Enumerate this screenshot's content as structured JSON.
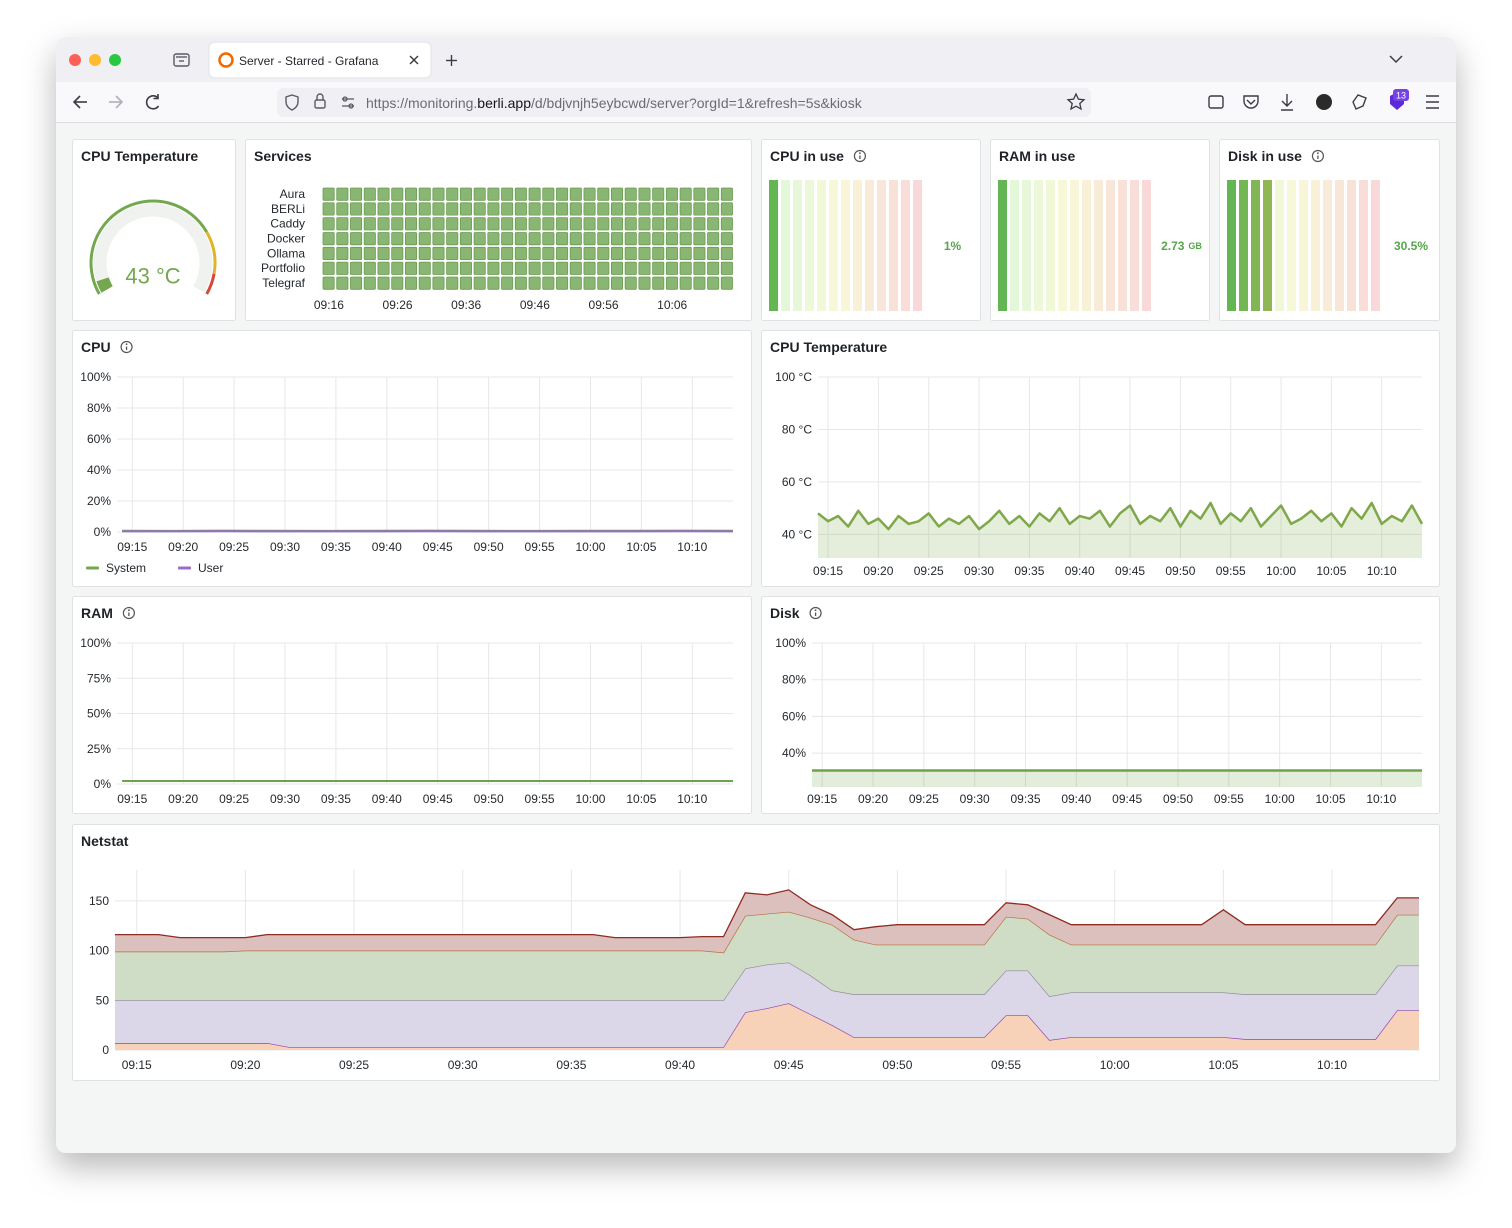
{
  "browser": {
    "tab_title": "Server - Starred - Grafana",
    "url": [
      "https://monitoring.",
      "berli.app",
      "/d/bdjvnjh5eybcwd/server?orgId=1&refresh=5s&kiosk"
    ],
    "extension_badge": "13"
  },
  "panels": [
    {
      "type": "gauge",
      "title": "CPU Temperature",
      "value": 43,
      "value_label": "43 °C",
      "min": 40,
      "max": 100,
      "base_color": "#73a84f",
      "thresholds": [
        {
          "value": 85,
          "color": "#e0b428"
        },
        {
          "value": 95,
          "color": "#d44a3a"
        }
      ]
    },
    {
      "type": "state_timeline",
      "title": "Services",
      "rows": [
        "Aura",
        "BERLi",
        "Caddy",
        "Docker",
        "Ollama",
        "Portfolio",
        "Telegraf"
      ],
      "color": "#8ab673",
      "values": [
        [
          1,
          1,
          1,
          1,
          1,
          1,
          1,
          1,
          1,
          1,
          1,
          1,
          1,
          1,
          1,
          1,
          1,
          1,
          1,
          1,
          1,
          1,
          1,
          1,
          1,
          1,
          1,
          1,
          1,
          1
        ],
        [
          1,
          1,
          1,
          1,
          1,
          1,
          1,
          1,
          1,
          1,
          1,
          1,
          1,
          1,
          1,
          1,
          1,
          1,
          1,
          1,
          1,
          1,
          1,
          1,
          1,
          1,
          1,
          1,
          1,
          1
        ],
        [
          1,
          1,
          1,
          1,
          1,
          1,
          1,
          1,
          1,
          1,
          1,
          1,
          1,
          1,
          1,
          1,
          1,
          1,
          1,
          1,
          1,
          1,
          1,
          1,
          1,
          1,
          1,
          1,
          1,
          1
        ],
        [
          1,
          1,
          1,
          1,
          1,
          1,
          1,
          1,
          1,
          1,
          1,
          1,
          1,
          1,
          1,
          1,
          1,
          1,
          1,
          1,
          1,
          1,
          1,
          1,
          1,
          1,
          1,
          1,
          1,
          1
        ],
        [
          1,
          1,
          1,
          1,
          1,
          1,
          1,
          1,
          1,
          1,
          1,
          1,
          1,
          1,
          1,
          1,
          1,
          1,
          1,
          1,
          1,
          1,
          1,
          1,
          1,
          1,
          1,
          1,
          1,
          1
        ],
        [
          1,
          1,
          1,
          1,
          1,
          1,
          1,
          1,
          1,
          1,
          1,
          1,
          1,
          1,
          1,
          1,
          1,
          1,
          1,
          1,
          1,
          1,
          1,
          1,
          1,
          1,
          1,
          1,
          1,
          1
        ],
        [
          1,
          1,
          1,
          1,
          1,
          1,
          1,
          1,
          1,
          1,
          1,
          1,
          1,
          1,
          1,
          1,
          1,
          1,
          1,
          1,
          1,
          1,
          1,
          1,
          1,
          1,
          1,
          1,
          1,
          1
        ]
      ],
      "xlim": [
        "09:15",
        "10:15"
      ],
      "xticks": [
        "09:16",
        "09:26",
        "09:36",
        "09:46",
        "09:56",
        "10:06"
      ]
    },
    {
      "type": "bar_gauge",
      "title": "CPU in use",
      "info_icon": true,
      "value": 1,
      "value_label": "1%",
      "min": 0,
      "max": 100
    },
    {
      "type": "bar_gauge",
      "title": "RAM in use",
      "value": 2.73,
      "value_label": "2.73",
      "unit": "GB",
      "min": 0,
      "max": 64
    },
    {
      "type": "bar_gauge",
      "title": "Disk in use",
      "info_icon": true,
      "value": 30.5,
      "value_label": "30.5%",
      "min": 0,
      "max": 100
    },
    {
      "type": "timeseries",
      "title": "CPU",
      "info_icon": true,
      "legend": true,
      "x": [
        "09:14",
        "09:19",
        "09:24",
        "09:29",
        "09:34",
        "09:39",
        "09:44",
        "09:49",
        "09:54",
        "09:59",
        "10:04",
        "10:09",
        "10:14"
      ],
      "series": [
        {
          "name": "System",
          "color": "#73a84f",
          "values": [
            0.8,
            0.7,
            0.9,
            0.8,
            0.7,
            0.8,
            0.9,
            0.8,
            0.7,
            0.8,
            0.8,
            0.9,
            0.8
          ]
        },
        {
          "name": "User",
          "color": "#9b6bc9",
          "values": [
            0.4,
            0.4,
            0.5,
            0.4,
            0.4,
            0.4,
            0.5,
            0.4,
            0.4,
            0.4,
            0.4,
            0.5,
            0.4
          ]
        }
      ],
      "xlim": [
        "09:13:30",
        "10:14"
      ],
      "xticks": [
        "09:15",
        "09:20",
        "09:25",
        "09:30",
        "09:35",
        "09:40",
        "09:45",
        "09:50",
        "09:55",
        "10:00",
        "10:05",
        "10:10"
      ],
      "ylim": [
        0,
        100
      ],
      "yticks": [
        {
          "value": 0,
          "label": "0%"
        },
        {
          "value": 20,
          "label": "20%"
        },
        {
          "value": 40,
          "label": "40%"
        },
        {
          "value": 60,
          "label": "60%"
        },
        {
          "value": 80,
          "label": "80%"
        },
        {
          "value": 100,
          "label": "100%"
        }
      ]
    },
    {
      "type": "timeseries",
      "title": "CPU Temperature",
      "area": true,
      "x": [
        "09:14",
        "09:15",
        "09:16",
        "09:17",
        "09:18",
        "09:19",
        "09:20",
        "09:21",
        "09:22",
        "09:23",
        "09:24",
        "09:25",
        "09:26",
        "09:27",
        "09:28",
        "09:29",
        "09:30",
        "09:31",
        "09:32",
        "09:33",
        "09:34",
        "09:35",
        "09:36",
        "09:37",
        "09:38",
        "09:39",
        "09:40",
        "09:41",
        "09:42",
        "09:43",
        "09:44",
        "09:45",
        "09:46",
        "09:47",
        "09:48",
        "09:49",
        "09:50",
        "09:51",
        "09:52",
        "09:53",
        "09:54",
        "09:55",
        "09:56",
        "09:57",
        "09:58",
        "09:59",
        "10:00",
        "10:01",
        "10:02",
        "10:03",
        "10:04",
        "10:05",
        "10:06",
        "10:07",
        "10:08",
        "10:09",
        "10:10",
        "10:11",
        "10:12",
        "10:13",
        "10:14"
      ],
      "series": [
        {
          "color": "#7ea84a",
          "values": [
            48,
            45,
            47,
            43,
            49,
            44,
            46,
            42,
            47,
            44,
            45,
            48,
            43,
            46,
            44,
            47,
            42,
            45,
            49,
            44,
            47,
            43,
            48,
            45,
            50,
            44,
            47,
            46,
            49,
            43,
            48,
            51,
            44,
            47,
            45,
            50,
            43,
            49,
            46,
            52,
            44,
            48,
            45,
            50,
            43,
            47,
            51,
            44,
            46,
            49,
            45,
            48,
            43,
            50,
            46,
            52,
            44,
            47,
            45,
            51,
            44
          ]
        }
      ],
      "xlim": [
        "09:14",
        "10:14"
      ],
      "xticks": [
        "09:15",
        "09:20",
        "09:25",
        "09:30",
        "09:35",
        "09:40",
        "09:45",
        "09:50",
        "09:55",
        "10:00",
        "10:05",
        "10:10"
      ],
      "ylim": [
        31,
        100
      ],
      "yticks": [
        {
          "value": 40,
          "label": "40 °C"
        },
        {
          "value": 60,
          "label": "60 °C"
        },
        {
          "value": 80,
          "label": "80 °C"
        },
        {
          "value": 100,
          "label": "100 °C"
        }
      ]
    },
    {
      "type": "timeseries",
      "title": "RAM",
      "info_icon": true,
      "x": [
        "09:14",
        "09:19",
        "09:24",
        "09:29",
        "09:34",
        "09:39",
        "09:44",
        "09:49",
        "09:54",
        "09:59",
        "10:04",
        "10:09",
        "10:14"
      ],
      "series": [
        {
          "color": "#6ea34d",
          "values": [
            2.1,
            2.1,
            2.1,
            2.1,
            2.1,
            2.1,
            2.1,
            2.1,
            2.1,
            2.1,
            2.1,
            2.1,
            2.1
          ]
        }
      ],
      "xlim": [
        "09:13:30",
        "10:14"
      ],
      "xticks": [
        "09:15",
        "09:20",
        "09:25",
        "09:30",
        "09:35",
        "09:40",
        "09:45",
        "09:50",
        "09:55",
        "10:00",
        "10:05",
        "10:10"
      ],
      "ylim": [
        0,
        100
      ],
      "yticks": [
        {
          "value": 0,
          "label": "0%"
        },
        {
          "value": 25,
          "label": "25%"
        },
        {
          "value": 50,
          "label": "50%"
        },
        {
          "value": 75,
          "label": "75%"
        },
        {
          "value": 100,
          "label": "100%"
        }
      ]
    },
    {
      "type": "timeseries",
      "title": "Disk",
      "info_icon": true,
      "area": true,
      "x": [
        "09:14",
        "09:19",
        "09:24",
        "09:29",
        "09:34",
        "09:39",
        "09:44",
        "09:49",
        "09:54",
        "09:59",
        "10:04",
        "10:09",
        "10:14"
      ],
      "series": [
        {
          "color": "#6ea34d",
          "values": [
            30.5,
            30.5,
            30.5,
            30.5,
            30.5,
            30.5,
            30.5,
            30.5,
            30.5,
            30.5,
            30.5,
            30.5,
            30.5
          ]
        }
      ],
      "xlim": [
        "09:14",
        "10:14"
      ],
      "xticks": [
        "09:15",
        "09:20",
        "09:25",
        "09:30",
        "09:35",
        "09:40",
        "09:45",
        "09:50",
        "09:55",
        "10:00",
        "10:05",
        "10:10"
      ],
      "ylim": [
        21.5,
        100
      ],
      "yticks": [
        {
          "value": 40,
          "label": "40%"
        },
        {
          "value": 60,
          "label": "60%"
        },
        {
          "value": 80,
          "label": "80%"
        },
        {
          "value": 100,
          "label": "100%"
        }
      ]
    },
    {
      "type": "stacked_area",
      "title": "Netstat",
      "x": [
        "09:14",
        "09:15",
        "09:16",
        "09:17",
        "09:18",
        "09:19",
        "09:20",
        "09:21",
        "09:22",
        "09:23",
        "09:24",
        "09:25",
        "09:26",
        "09:27",
        "09:28",
        "09:29",
        "09:30",
        "09:31",
        "09:32",
        "09:33",
        "09:34",
        "09:35",
        "09:36",
        "09:37",
        "09:38",
        "09:39",
        "09:40",
        "09:41",
        "09:42",
        "09:43",
        "09:44",
        "09:45",
        "09:46",
        "09:47",
        "09:48",
        "09:49",
        "09:50",
        "09:51",
        "09:52",
        "09:53",
        "09:54",
        "09:55",
        "09:56",
        "09:57",
        "09:58",
        "09:59",
        "10:00",
        "10:01",
        "10:02",
        "10:03",
        "10:04",
        "10:05",
        "10:06",
        "10:07",
        "10:08",
        "10:09",
        "10:10",
        "10:11",
        "10:12",
        "10:13",
        "10:14"
      ],
      "series": [
        {
          "color": "#f8d2b8",
          "line_color": "#8e44ad",
          "values": [
            7,
            7,
            7,
            7,
            7,
            7,
            7,
            7,
            3,
            3,
            3,
            3,
            3,
            3,
            3,
            3,
            3,
            3,
            3,
            3,
            3,
            3,
            3,
            3,
            3,
            3,
            3,
            3,
            3,
            38,
            42,
            47,
            36,
            25,
            13,
            13,
            13,
            13,
            13,
            13,
            13,
            35,
            35,
            10,
            13,
            13,
            13,
            13,
            13,
            13,
            13,
            13,
            11,
            11,
            11,
            11,
            11,
            11,
            11,
            40,
            40
          ]
        },
        {
          "color": "#dcd6e9",
          "line_color": "#8c8c9a",
          "values": [
            43,
            43,
            43,
            43,
            43,
            43,
            43,
            43,
            47,
            47,
            47,
            47,
            47,
            47,
            47,
            47,
            47,
            47,
            47,
            47,
            47,
            47,
            47,
            47,
            47,
            47,
            47,
            47,
            47,
            44,
            44,
            41,
            39,
            35,
            43,
            43,
            43,
            43,
            43,
            43,
            43,
            45,
            45,
            44,
            45,
            45,
            45,
            45,
            45,
            45,
            45,
            45,
            45,
            45,
            45,
            45,
            45,
            45,
            45,
            45,
            45
          ]
        },
        {
          "color": "#cfdcc6",
          "line_color": "#b5703e",
          "values": [
            49,
            49,
            49,
            49,
            49,
            49,
            50,
            50,
            50,
            50,
            50,
            50,
            50,
            50,
            50,
            50,
            50,
            50,
            50,
            50,
            50,
            50,
            50,
            50,
            50,
            50,
            50,
            50,
            48,
            53,
            51,
            51,
            58,
            66,
            55,
            50,
            50,
            50,
            50,
            50,
            50,
            54,
            52,
            62,
            48,
            48,
            48,
            48,
            48,
            48,
            48,
            48,
            50,
            50,
            50,
            50,
            50,
            50,
            50,
            51,
            51
          ]
        },
        {
          "color": "#dcc0bd",
          "line_color": "#8e2b22",
          "values": [
            17,
            17,
            17,
            14,
            14,
            14,
            13,
            16,
            16,
            16,
            16,
            16,
            16,
            16,
            16,
            16,
            16,
            16,
            16,
            16,
            16,
            16,
            16,
            13,
            13,
            13,
            13,
            14,
            16,
            23,
            19,
            22,
            13,
            10,
            10,
            18,
            20,
            20,
            20,
            20,
            20,
            14,
            14,
            20,
            20,
            20,
            20,
            20,
            20,
            20,
            20,
            35,
            20,
            20,
            20,
            20,
            20,
            20,
            20,
            17,
            17
          ]
        }
      ],
      "xlim": [
        "09:14",
        "10:14"
      ],
      "xticks": [
        "09:15",
        "09:20",
        "09:25",
        "09:30",
        "09:35",
        "09:40",
        "09:45",
        "09:50",
        "09:55",
        "10:00",
        "10:05",
        "10:10"
      ],
      "ylim": [
        0,
        181
      ],
      "yticks": [
        0,
        50,
        100,
        150
      ]
    }
  ]
}
